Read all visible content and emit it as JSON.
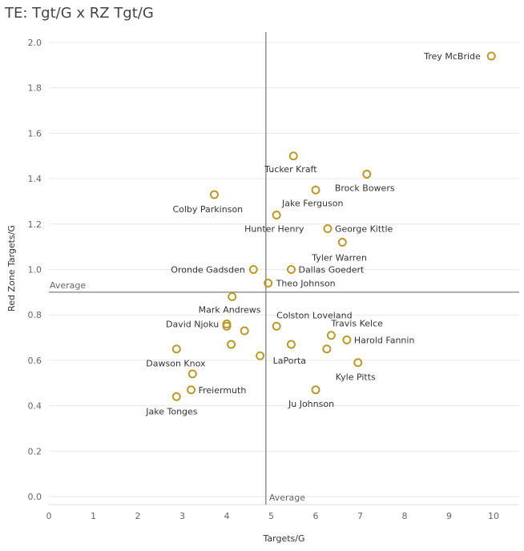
{
  "chart_data": {
    "type": "scatter",
    "title": "TE: Tgt/G x RZ Tgt/G",
    "xlabel": "Targets/G",
    "ylabel": "Red Zone Targets/G",
    "xlim": [
      0,
      10.5
    ],
    "ylim": [
      0,
      2.05
    ],
    "x_ticks": [
      0,
      1,
      2,
      3,
      4,
      5,
      6,
      7,
      8,
      9,
      10
    ],
    "y_ticks": [
      "0.0",
      "0.2",
      "0.4",
      "0.6",
      "0.8",
      "1.0",
      "1.2",
      "1.4",
      "1.6",
      "1.8",
      "2.0"
    ],
    "grid": "horizontal",
    "marker_color": "#b89a2e",
    "reference_lines": {
      "x_average": 4.88,
      "y_average": 0.9,
      "x_label": "Average",
      "y_label": "Average"
    },
    "points": [
      {
        "label": "Trey McBride",
        "x": 9.95,
        "y": 1.94
      },
      {
        "label": "Tucker Kraft",
        "x": 5.5,
        "y": 1.5
      },
      {
        "label": "Brock Bowers",
        "x": 7.15,
        "y": 1.42
      },
      {
        "label": "Jake Ferguson",
        "x": 6.0,
        "y": 1.35
      },
      {
        "label": "Colby Parkinson",
        "x": 3.72,
        "y": 1.33
      },
      {
        "label": "Hunter Henry",
        "x": 5.12,
        "y": 1.24
      },
      {
        "label": "George Kittle",
        "x": 6.27,
        "y": 1.18
      },
      {
        "label": "Tyler Warren",
        "x": 6.6,
        "y": 1.12
      },
      {
        "label": "Oronde Gadsden",
        "x": 4.6,
        "y": 1.0
      },
      {
        "label": "Dallas Goedert",
        "x": 5.45,
        "y": 1.0
      },
      {
        "label": "Theo Johnson",
        "x": 4.93,
        "y": 0.94
      },
      {
        "label": "Mark Andrews",
        "x": 4.12,
        "y": 0.88
      },
      {
        "label": "David Njoku",
        "x": 4.0,
        "y": 0.76
      },
      {
        "label": "",
        "x": 4.0,
        "y": 0.75
      },
      {
        "label": "",
        "x": 4.4,
        "y": 0.73
      },
      {
        "label": "Colston Loveland",
        "x": 5.12,
        "y": 0.75
      },
      {
        "label": "Travis Kelce",
        "x": 6.35,
        "y": 0.71
      },
      {
        "label": "Harold Fannin",
        "x": 6.7,
        "y": 0.69
      },
      {
        "label": "",
        "x": 4.1,
        "y": 0.67
      },
      {
        "label": "",
        "x": 5.45,
        "y": 0.67
      },
      {
        "label": "",
        "x": 6.25,
        "y": 0.65
      },
      {
        "label": "Dawson Knox",
        "x": 2.87,
        "y": 0.65
      },
      {
        "label": "LaPorta",
        "x": 4.75,
        "y": 0.62
      },
      {
        "label": "Kyle Pitts",
        "x": 6.95,
        "y": 0.59
      },
      {
        "label": "",
        "x": 3.23,
        "y": 0.54
      },
      {
        "label": "Freiermuth",
        "x": 3.2,
        "y": 0.47
      },
      {
        "label": "Ju Johnson",
        "x": 6.0,
        "y": 0.47
      },
      {
        "label": "Jake Tonges",
        "x": 2.87,
        "y": 0.44
      }
    ]
  }
}
